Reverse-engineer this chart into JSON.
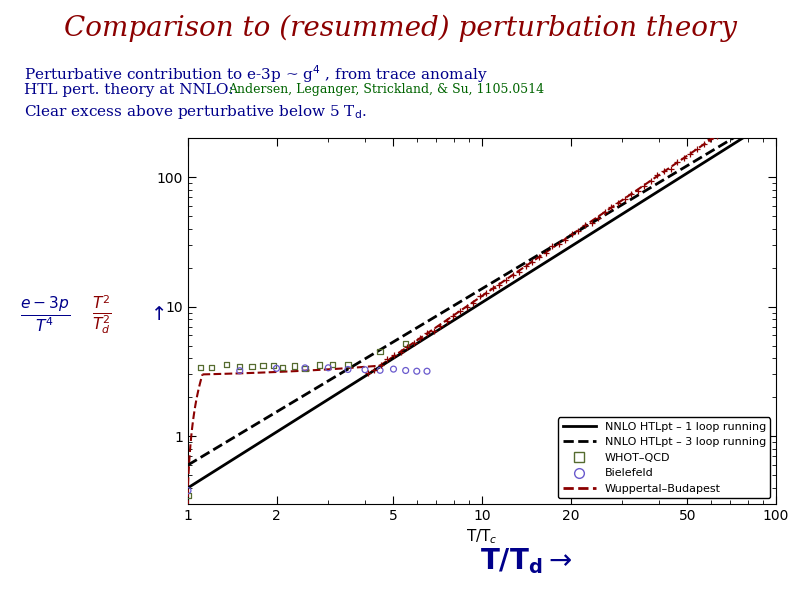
{
  "title": "Comparison to (resummed) perturbation theory",
  "title_color": "#8B0000",
  "title_fontsize": 20,
  "text_color": "#00008B",
  "ref_color": "#006400",
  "background_color": "white",
  "plot_bg": "white",
  "xlim_log": [
    1,
    100
  ],
  "ylim_log": [
    0.3,
    200
  ],
  "nnlo_1loop_color": "black",
  "nnlo_3loop_color": "black",
  "whot_color": "#556B2F",
  "bielefeld_color": "#6A5ACD",
  "wuppertal_color": "#8B0000",
  "ylabel_frac1_color": "#00008B",
  "ylabel_frac2_color": "#8B0000",
  "arrow_color": "#00008B",
  "xlabel2_color": "#00008B"
}
